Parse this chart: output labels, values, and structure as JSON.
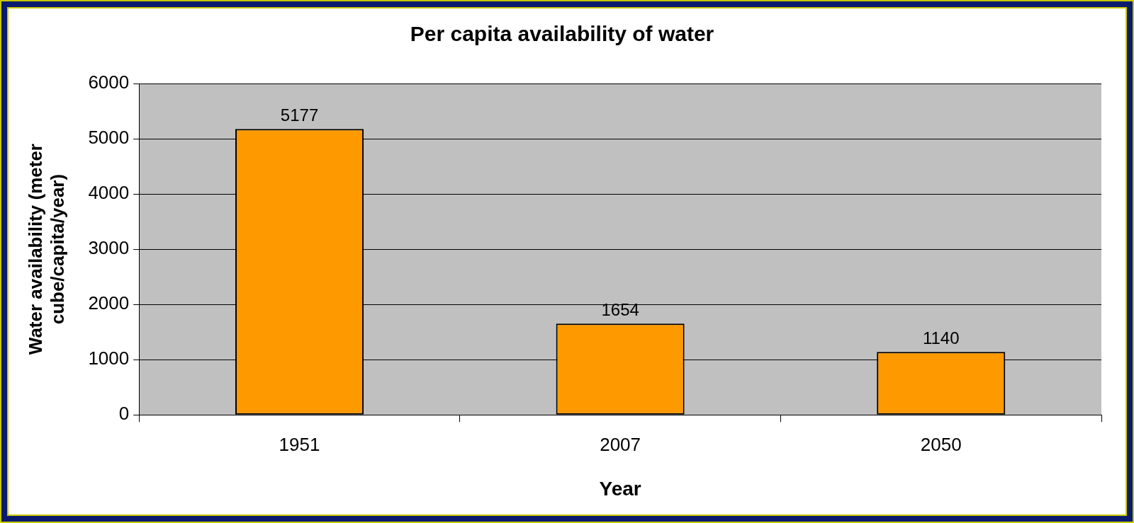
{
  "chart_data": {
    "type": "bar",
    "title": "Per capita availability of water",
    "xlabel": "Year",
    "ylabel": "Water availability (meter cube/capita/year)",
    "categories": [
      "1951",
      "2007",
      "2050"
    ],
    "values": [
      5177,
      1654,
      1140
    ],
    "color": "#ff9900",
    "ylim": [
      0,
      6000
    ],
    "yticks": [
      0,
      1000,
      2000,
      3000,
      4000,
      5000,
      6000
    ],
    "grid": "y",
    "data_labels": true,
    "legend": false
  }
}
